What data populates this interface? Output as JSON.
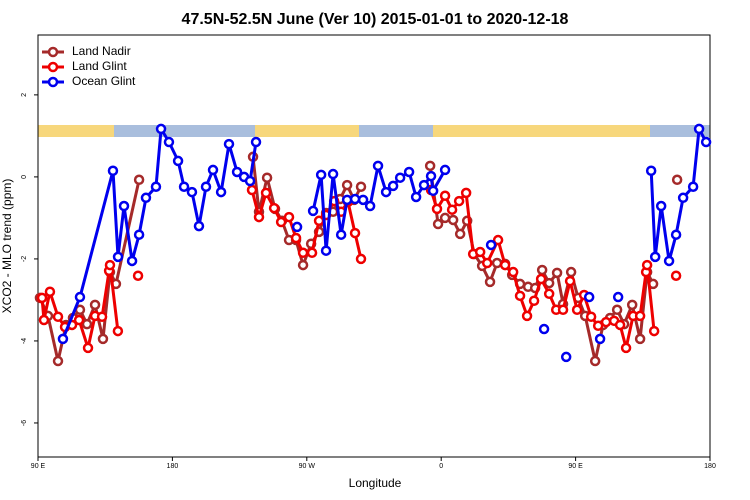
{
  "chart_data": {
    "type": "line",
    "title": "47.5N-52.5N June (Ver 10)   2015-01-01 to 2020-12-18",
    "x_label": "Longitude",
    "y_label": "XCO2 - MLO trend (ppm)",
    "xlim": [
      90,
      540
    ],
    "ylim": [
      -6.83,
      3.46
    ],
    "xticks": [
      {
        "value": 90,
        "label": "90 E"
      },
      180,
      {
        "value": 270,
        "label": "90 W"
      },
      {
        "value": 360,
        "label": "0"
      },
      {
        "value": 450,
        "label": "90 E"
      },
      {
        "value": 540,
        "label": "180"
      }
    ],
    "yticks": [
      -6,
      -4,
      -2,
      0,
      2
    ],
    "legend": "top-left",
    "series": [
      {
        "name": "Land Nadir",
        "color": "#a52a2a",
        "x": [
          91.3,
          96.7,
          103.4,
          108.8,
          113.4,
          118.1,
          122.8,
          128.2,
          133.5,
          138.2,
          142.2,
          157.7,
          null,
          234.0,
          238.0,
          243.4,
          248.7,
          253.4,
          258.1,
          262.8,
          267.5,
          272.9,
          278.2,
          282.9,
          287.6,
          292.3,
          297.0,
          301.7,
          306.3,
          null,
          352.6,
          357.9,
          362.6,
          368.0,
          372.7,
          377.4,
          382.1,
          387.4,
          392.7,
          397.4,
          402.8,
          407.5,
          412.8,
          418.2,
          422.9,
          427.6,
          432.3,
          437.6,
          441.6,
          447.0,
          451.7,
          456.4,
          463.1,
          468.4,
          473.1,
          477.8,
          482.5,
          487.9,
          493.2,
          497.9,
          501.9,
          null,
          518.0
        ],
        "values": [
          -2.95,
          -3.39,
          -4.49,
          -3.61,
          -3.44,
          -3.24,
          -3.59,
          -3.12,
          -3.95,
          -2.32,
          -2.61,
          -0.07,
          null,
          0.49,
          -0.85,
          -0.02,
          -0.78,
          -1.07,
          -1.54,
          -1.54,
          -2.15,
          -1.63,
          -1.34,
          -0.88,
          -0.85,
          -0.54,
          -0.2,
          -0.56,
          -0.24,
          null,
          0.27,
          -1.15,
          -1.0,
          -1.05,
          -1.39,
          -1.07,
          -1.88,
          -2.17,
          -2.56,
          -2.1,
          -2.12,
          -2.39,
          -2.61,
          -2.68,
          -2.71,
          -2.27,
          -2.59,
          -2.34,
          -3.1,
          -2.32,
          -2.95,
          -3.39,
          -4.49,
          -3.61,
          -3.44,
          -3.24,
          -3.59,
          -3.12,
          -3.95,
          -2.32,
          -2.61,
          null,
          -0.07
        ]
      },
      {
        "name": "Land Glint",
        "color": "#ee0000",
        "x": [
          92.7,
          94.0,
          98.0,
          103.4,
          108.1,
          112.8,
          117.5,
          123.5,
          128.2,
          132.9,
          137.6,
          138.2,
          143.5,
          null,
          157.0,
          null,
          233.3,
          238.0,
          242.7,
          248.1,
          252.8,
          258.1,
          262.8,
          267.5,
          273.5,
          278.2,
          282.9,
          288.3,
          293.0,
          297.6,
          302.3,
          306.3,
          null,
          353.2,
          357.2,
          362.6,
          367.3,
          372.0,
          376.7,
          381.4,
          386.1,
          390.8,
          398.1,
          402.8,
          408.2,
          412.8,
          417.5,
          422.2,
          426.9,
          432.3,
          437.0,
          441.6,
          446.3,
          451.0,
          455.7,
          460.4,
          465.1,
          470.4,
          475.8,
          479.8,
          483.8,
          488.5,
          493.2,
          497.2,
          497.9,
          502.6,
          null,
          517.3
        ],
        "values": [
          -2.95,
          -3.49,
          -2.8,
          -3.41,
          -3.66,
          -3.61,
          -3.49,
          -4.17,
          -3.39,
          -3.41,
          -2.29,
          -2.15,
          -3.76,
          null,
          -2.41,
          null,
          -0.32,
          -0.98,
          -0.39,
          -0.76,
          -1.1,
          -0.98,
          -1.49,
          -1.85,
          -1.85,
          -1.07,
          -0.93,
          -0.59,
          -0.85,
          -0.61,
          -1.37,
          -2.0,
          null,
          -0.32,
          -0.78,
          -0.46,
          -0.8,
          -0.59,
          -0.39,
          -1.88,
          -1.83,
          -2.1,
          -1.54,
          -2.15,
          -2.32,
          -2.9,
          -3.39,
          -3.02,
          -2.49,
          -2.85,
          -3.24,
          -3.24,
          -2.54,
          -3.24,
          -2.88,
          -3.41,
          -3.63,
          -3.54,
          -3.51,
          -3.61,
          -4.17,
          -3.39,
          -3.39,
          -2.32,
          -2.15,
          -3.76,
          null,
          -2.41
        ]
      },
      {
        "name": "Ocean Glint",
        "color": "#0000ee",
        "x": [
          106.7,
          118.1,
          140.2,
          143.6,
          147.6,
          153.0,
          157.7,
          162.3,
          169.0,
          172.4,
          177.7,
          183.8,
          187.8,
          193.1,
          197.8,
          202.5,
          207.2,
          212.6,
          217.9,
          223.3,
          228.0,
          232.0,
          236.0,
          null,
          263.5,
          null,
          274.2,
          279.6,
          282.9,
          287.6,
          293.0,
          297.0,
          302.3,
          307.7,
          312.4,
          317.7,
          323.1,
          327.8,
          332.5,
          338.5,
          343.2,
          348.5,
          353.2,
          354.6,
          362.6,
          null,
          393.4,
          null,
          428.9,
          null,
          443.7,
          null,
          459.1,
          null,
          466.4,
          null,
          478.5,
          null,
          500.6,
          503.3,
          507.3,
          512.6,
          517.3,
          522.0,
          528.7,
          532.7,
          537.4
        ],
        "values": [
          -3.95,
          -2.93,
          0.15,
          -1.95,
          -0.71,
          -2.05,
          -1.41,
          -0.51,
          -0.24,
          1.17,
          0.85,
          0.39,
          -0.24,
          -0.37,
          -1.2,
          -0.24,
          0.17,
          -0.37,
          0.8,
          0.12,
          0.0,
          -0.1,
          0.85,
          null,
          -1.22,
          null,
          -0.83,
          0.05,
          -1.8,
          0.07,
          -1.41,
          -0.56,
          -0.54,
          -0.56,
          -0.71,
          0.27,
          -0.37,
          -0.22,
          -0.02,
          0.12,
          -0.49,
          -0.2,
          0.02,
          -0.34,
          0.17,
          null,
          -1.66,
          null,
          -3.71,
          null,
          -4.39,
          null,
          -2.93,
          null,
          -3.95,
          null,
          -2.93,
          null,
          0.15,
          -1.95,
          -0.71,
          -2.05,
          -1.41,
          -0.51,
          -0.24,
          1.17,
          0.85
        ]
      }
    ]
  }
}
